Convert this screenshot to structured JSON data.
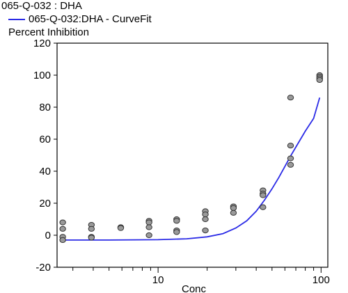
{
  "chart_data": {
    "type": "scatter",
    "title": "065-Q-032  : DHA",
    "xlabel": "Conc",
    "ylabel": "Percent Inhibition",
    "xscale": "log",
    "xlim": [
      2.4,
      110
    ],
    "ylim": [
      -20,
      120
    ],
    "yticks": [
      -20,
      0,
      20,
      40,
      60,
      80,
      100,
      120
    ],
    "xticks": [
      10,
      100
    ],
    "grid": false,
    "legend": {
      "position": "top-left",
      "entries": [
        "065-Q-032:DHA - CurveFit"
      ]
    },
    "colors": {
      "curve": "#2a2ae6",
      "points": "#9a9a9a",
      "point_edge": "#333333"
    },
    "points": [
      {
        "x": 2.6,
        "y": 8
      },
      {
        "x": 2.6,
        "y": 4
      },
      {
        "x": 2.6,
        "y": -1
      },
      {
        "x": 2.6,
        "y": -3
      },
      {
        "x": 3.9,
        "y": 6.5
      },
      {
        "x": 3.9,
        "y": 4
      },
      {
        "x": 3.9,
        "y": -1
      },
      {
        "x": 3.9,
        "y": -1.5
      },
      {
        "x": 5.9,
        "y": 5
      },
      {
        "x": 5.9,
        "y": 4.5
      },
      {
        "x": 8.8,
        "y": 9
      },
      {
        "x": 8.8,
        "y": 8
      },
      {
        "x": 8.8,
        "y": 5
      },
      {
        "x": 8.8,
        "y": 0
      },
      {
        "x": 13,
        "y": 10
      },
      {
        "x": 13,
        "y": 9
      },
      {
        "x": 13,
        "y": 3
      },
      {
        "x": 13,
        "y": 2
      },
      {
        "x": 19.5,
        "y": 15
      },
      {
        "x": 19.5,
        "y": 13
      },
      {
        "x": 19.5,
        "y": 10
      },
      {
        "x": 19.5,
        "y": 3
      },
      {
        "x": 29,
        "y": 18
      },
      {
        "x": 29,
        "y": 17
      },
      {
        "x": 29,
        "y": 14
      },
      {
        "x": 44,
        "y": 28
      },
      {
        "x": 44,
        "y": 26
      },
      {
        "x": 44,
        "y": 25
      },
      {
        "x": 44,
        "y": 17.5
      },
      {
        "x": 65,
        "y": 86
      },
      {
        "x": 65,
        "y": 56
      },
      {
        "x": 65,
        "y": 48
      },
      {
        "x": 65,
        "y": 44
      },
      {
        "x": 98,
        "y": 100
      },
      {
        "x": 98,
        "y": 99
      },
      {
        "x": 98,
        "y": 98
      },
      {
        "x": 98,
        "y": 97
      }
    ],
    "series": [
      {
        "name": "065-Q-032:DHA - CurveFit",
        "curve": [
          {
            "x": 2.6,
            "y": -3
          },
          {
            "x": 5,
            "y": -3
          },
          {
            "x": 10,
            "y": -2.8
          },
          {
            "x": 15,
            "y": -2.2
          },
          {
            "x": 20,
            "y": -1
          },
          {
            "x": 25,
            "y": 1
          },
          {
            "x": 30,
            "y": 4.5
          },
          {
            "x": 35,
            "y": 9
          },
          {
            "x": 40,
            "y": 15
          },
          {
            "x": 45,
            "y": 22
          },
          {
            "x": 50,
            "y": 29
          },
          {
            "x": 55,
            "y": 36
          },
          {
            "x": 60,
            "y": 43
          },
          {
            "x": 65,
            "y": 49.5
          },
          {
            "x": 70,
            "y": 55
          },
          {
            "x": 80,
            "y": 65
          },
          {
            "x": 90,
            "y": 73
          },
          {
            "x": 98,
            "y": 86
          }
        ]
      }
    ]
  }
}
